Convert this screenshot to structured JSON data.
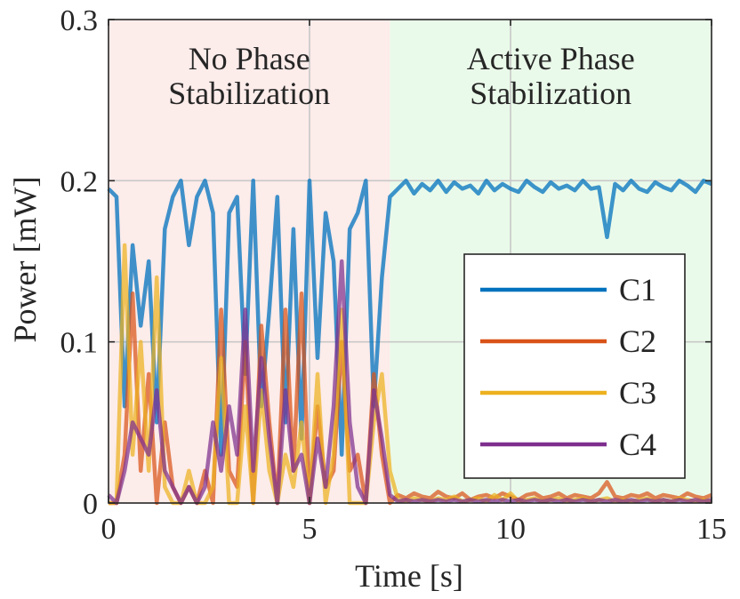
{
  "chart_data": {
    "type": "line",
    "title": "",
    "xlabel": "Time [s]",
    "ylabel": "Power [mW]",
    "xlim": [
      0,
      15
    ],
    "ylim": [
      0,
      0.3
    ],
    "xticks": [
      0,
      5,
      10,
      15
    ],
    "xtick_labels": [
      "0",
      "5",
      "10",
      "15"
    ],
    "yticks": [
      0,
      0.1,
      0.2,
      0.3
    ],
    "ytick_labels": [
      "0",
      "0.1",
      "0.2",
      "0.3"
    ],
    "grid": true,
    "legend_location": "lower-right",
    "regions": [
      {
        "name": "no-phase-stabilization",
        "x_start": 0,
        "x_end": 7,
        "line1": "No Phase",
        "line2": "Stabilization",
        "color": "#fcecea"
      },
      {
        "name": "active-phase-stabilization",
        "x_start": 7,
        "x_end": 15,
        "line1": "Active Phase",
        "line2": "Stabilization",
        "color": "#eafaea"
      }
    ],
    "x": [
      0.0,
      0.2,
      0.4,
      0.6,
      0.8,
      1.0,
      1.2,
      1.4,
      1.6,
      1.8,
      2.0,
      2.2,
      2.4,
      2.6,
      2.8,
      3.0,
      3.2,
      3.4,
      3.6,
      3.8,
      4.0,
      4.2,
      4.4,
      4.6,
      4.8,
      5.0,
      5.2,
      5.4,
      5.6,
      5.8,
      6.0,
      6.2,
      6.4,
      6.6,
      6.8,
      7.0,
      7.2,
      7.4,
      7.6,
      7.8,
      8.0,
      8.2,
      8.4,
      8.6,
      8.8,
      9.0,
      9.2,
      9.4,
      9.6,
      9.8,
      10.0,
      10.2,
      10.4,
      10.6,
      10.8,
      11.0,
      11.2,
      11.4,
      11.6,
      11.8,
      12.0,
      12.2,
      12.4,
      12.6,
      12.8,
      13.0,
      13.2,
      13.4,
      13.6,
      13.8,
      14.0,
      14.2,
      14.4,
      14.6,
      14.8,
      15.0
    ],
    "series": [
      {
        "name": "C1",
        "color": "#0072bd",
        "values": [
          0.195,
          0.19,
          0.06,
          0.16,
          0.11,
          0.15,
          0.05,
          0.17,
          0.19,
          0.2,
          0.16,
          0.19,
          0.2,
          0.18,
          0.03,
          0.18,
          0.19,
          0.08,
          0.2,
          0.06,
          0.12,
          0.19,
          0.05,
          0.17,
          0.04,
          0.2,
          0.09,
          0.18,
          0.15,
          0.03,
          0.17,
          0.18,
          0.2,
          0.06,
          0.14,
          0.19,
          0.195,
          0.2,
          0.192,
          0.198,
          0.194,
          0.2,
          0.193,
          0.199,
          0.195,
          0.197,
          0.192,
          0.2,
          0.194,
          0.198,
          0.195,
          0.193,
          0.2,
          0.196,
          0.193,
          0.199,
          0.195,
          0.197,
          0.194,
          0.2,
          0.195,
          0.196,
          0.165,
          0.198,
          0.194,
          0.2,
          0.195,
          0.193,
          0.199,
          0.196,
          0.194,
          0.2,
          0.197,
          0.193,
          0.2,
          0.198
        ]
      },
      {
        "name": "C2",
        "color": "#d95319",
        "values": [
          0.0,
          0.0,
          0.03,
          0.13,
          0.02,
          0.08,
          0.0,
          0.05,
          0.01,
          0.0,
          0.01,
          0.0,
          0.02,
          0.0,
          0.12,
          0.02,
          0.01,
          0.1,
          0.0,
          0.11,
          0.05,
          0.0,
          0.12,
          0.02,
          0.13,
          0.0,
          0.06,
          0.01,
          0.02,
          0.1,
          0.02,
          0.03,
          0.0,
          0.08,
          0.03,
          0.0,
          0.005,
          0.003,
          0.006,
          0.004,
          0.003,
          0.007,
          0.004,
          0.003,
          0.006,
          0.002,
          0.004,
          0.005,
          0.003,
          0.006,
          0.004,
          0.002,
          0.005,
          0.006,
          0.003,
          0.004,
          0.006,
          0.003,
          0.005,
          0.004,
          0.003,
          0.006,
          0.013,
          0.004,
          0.003,
          0.005,
          0.004,
          0.006,
          0.003,
          0.005,
          0.004,
          0.003,
          0.006,
          0.004,
          0.003,
          0.005
        ]
      },
      {
        "name": "C3",
        "color": "#edb120",
        "values": [
          0.0,
          0.0,
          0.16,
          0.03,
          0.1,
          0.02,
          0.14,
          0.01,
          0.0,
          0.0,
          0.02,
          0.0,
          0.0,
          0.01,
          0.09,
          0.0,
          0.0,
          0.06,
          0.0,
          0.07,
          0.02,
          0.0,
          0.03,
          0.01,
          0.05,
          0.0,
          0.08,
          0.0,
          0.03,
          0.12,
          0.0,
          0.0,
          0.0,
          0.05,
          0.08,
          0.02,
          0.002,
          0.001,
          0.003,
          0.002,
          0.001,
          0.003,
          0.002,
          0.004,
          0.001,
          0.002,
          0.003,
          0.001,
          0.005,
          0.002,
          0.006,
          0.001,
          0.002,
          0.003,
          0.001,
          0.002,
          0.003,
          0.001,
          0.002,
          0.003,
          0.001,
          0.002,
          0.003,
          0.001,
          0.002,
          0.001,
          0.002,
          0.003,
          0.001,
          0.002,
          0.001,
          0.003,
          0.002,
          0.001,
          0.002,
          0.001
        ]
      },
      {
        "name": "C4",
        "color": "#7e2f8e",
        "values": [
          0.005,
          0.0,
          0.02,
          0.05,
          0.04,
          0.03,
          0.07,
          0.02,
          0.01,
          0.0,
          0.01,
          0.0,
          0.01,
          0.05,
          0.02,
          0.06,
          0.03,
          0.12,
          0.02,
          0.09,
          0.04,
          0.0,
          0.07,
          0.02,
          0.03,
          0.0,
          0.04,
          0.01,
          0.06,
          0.15,
          0.05,
          0.01,
          0.0,
          0.07,
          0.04,
          0.005,
          0.001,
          0.002,
          0.001,
          0.002,
          0.001,
          0.002,
          0.001,
          0.002,
          0.001,
          0.002,
          0.001,
          0.002,
          0.001,
          0.002,
          0.001,
          0.002,
          0.001,
          0.002,
          0.001,
          0.002,
          0.001,
          0.002,
          0.001,
          0.002,
          0.001,
          0.002,
          0.001,
          0.002,
          0.001,
          0.002,
          0.001,
          0.002,
          0.001,
          0.002,
          0.001,
          0.002,
          0.001,
          0.002,
          0.001,
          0.002
        ]
      }
    ]
  }
}
